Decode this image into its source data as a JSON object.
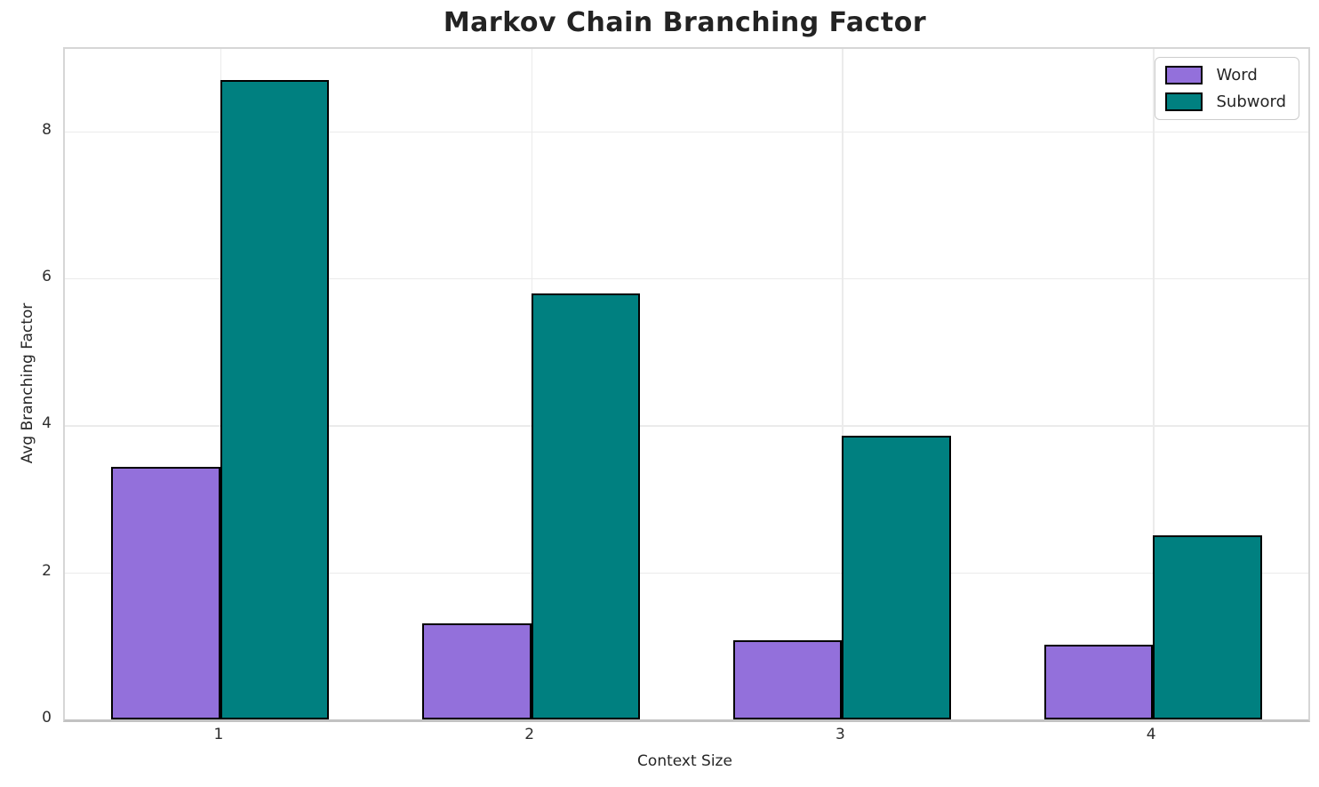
{
  "chart_data": {
    "type": "bar",
    "title": "Markov Chain Branching Factor",
    "xlabel": "Context Size",
    "ylabel": "Avg Branching Factor",
    "categories": [
      "1",
      "2",
      "3",
      "4"
    ],
    "series": [
      {
        "name": "Word",
        "color": "#9370DB",
        "values": [
          3.43,
          1.31,
          1.08,
          1.02
        ]
      },
      {
        "name": "Subword",
        "color": "#008080",
        "values": [
          8.7,
          5.79,
          3.86,
          2.51
        ]
      }
    ],
    "ylim": [
      0,
      9.12
    ],
    "yticks": [
      0,
      2,
      4,
      6,
      8
    ],
    "grid": true,
    "legend_position": "upper right",
    "bar_edge_color": "#000000",
    "group_bar_fraction": 0.35,
    "colors": {
      "text": "#262626",
      "grid": "#ebebeb",
      "spine": "#d6d6d6"
    }
  }
}
